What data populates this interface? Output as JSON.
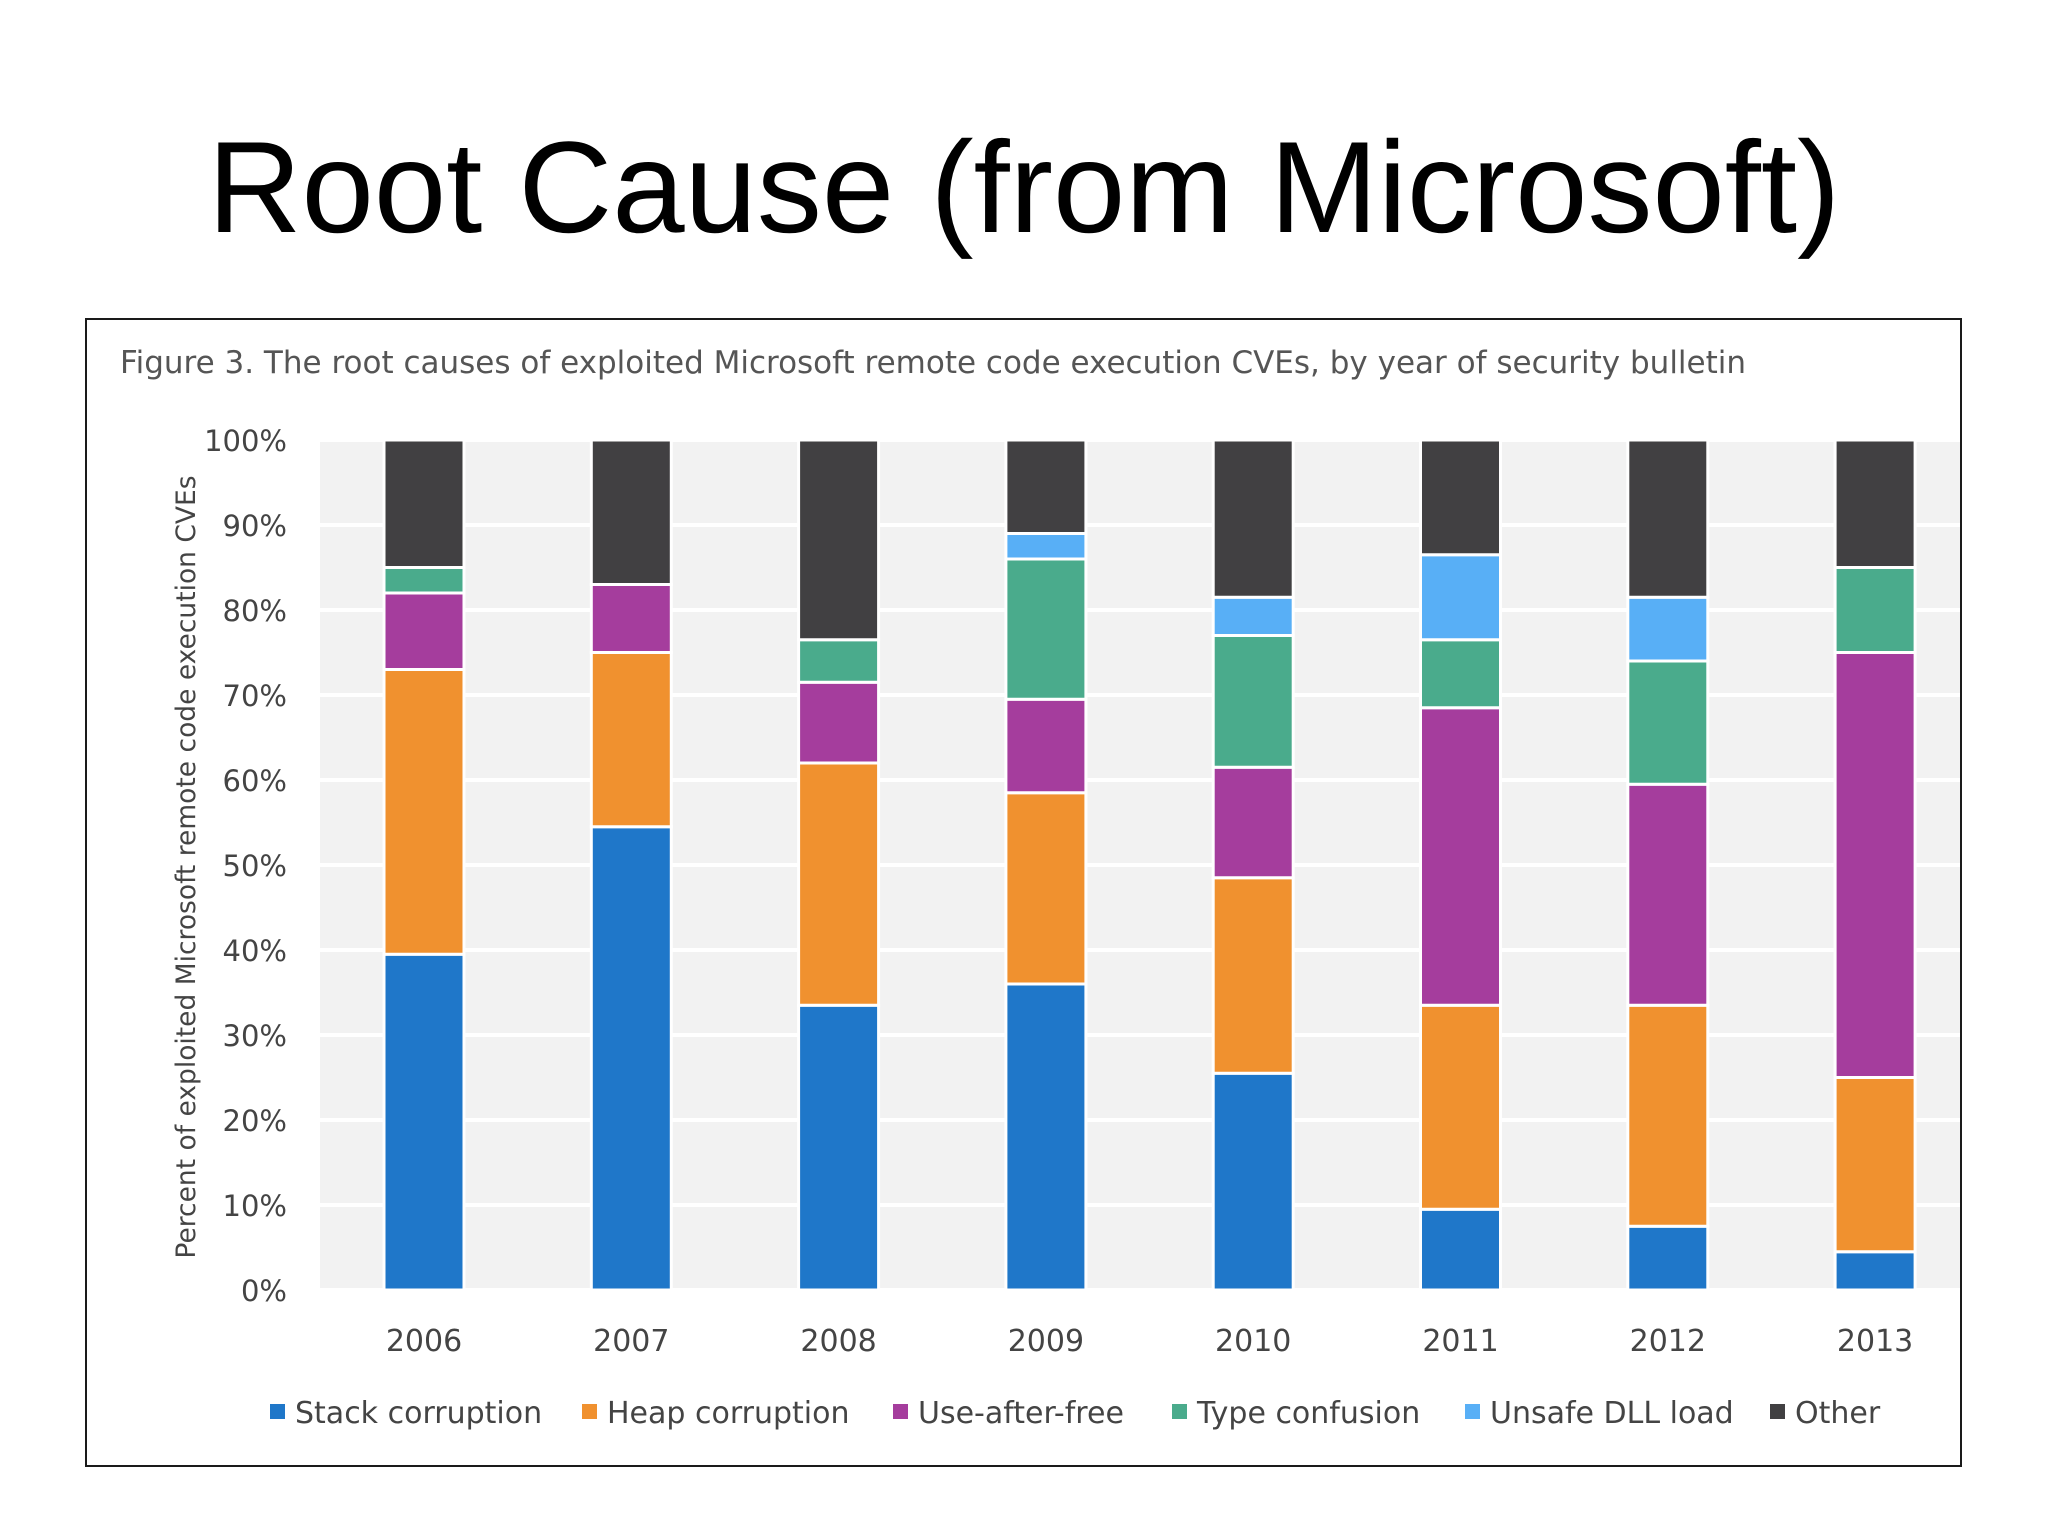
{
  "slide": {
    "title": "Root Cause (from Microsoft)"
  },
  "figure": {
    "caption": "Figure 3. The root causes of exploited Microsoft remote code execution CVEs, by year of security bulletin"
  },
  "chart_data": {
    "type": "bar",
    "stacked": true,
    "title": "Figure 3. The root causes of exploited Microsoft remote code execution CVEs, by year of security bulletin",
    "xlabel": "",
    "ylabel": "Percent of exploited Microsoft remote code execution CVEs",
    "ylim": [
      0,
      100
    ],
    "yticks": [
      0,
      10,
      20,
      30,
      40,
      50,
      60,
      70,
      80,
      90,
      100
    ],
    "ytick_labels": [
      "0%",
      "10%",
      "20%",
      "30%",
      "40%",
      "50%",
      "60%",
      "70%",
      "80%",
      "90%",
      "100%"
    ],
    "grid": true,
    "legend_position": "bottom",
    "categories": [
      "2006",
      "2007",
      "2008",
      "2009",
      "2010",
      "2011",
      "2012",
      "2013"
    ],
    "series": [
      {
        "name": "Stack corruption",
        "color": "#1f77c9",
        "values": [
          39.5,
          54.5,
          33.5,
          36,
          25.5,
          9.5,
          7.5,
          4.5
        ]
      },
      {
        "name": "Heap corruption",
        "color": "#f0912f",
        "values": [
          33.5,
          20.5,
          28.5,
          22.5,
          23,
          24,
          26,
          20.5
        ]
      },
      {
        "name": "Use-after-free",
        "color": "#a53d9d",
        "values": [
          9,
          8,
          9.5,
          11,
          13,
          35,
          26,
          50
        ]
      },
      {
        "name": "Type confusion",
        "color": "#4aab8c",
        "values": [
          3,
          0,
          5,
          16.5,
          15.5,
          8,
          14.5,
          10
        ]
      },
      {
        "name": "Unsafe DLL load",
        "color": "#58aff6",
        "values": [
          0,
          0,
          0,
          3,
          4.5,
          10,
          7.5,
          0
        ]
      },
      {
        "name": "Other",
        "color": "#414042",
        "values": [
          15,
          17,
          23.5,
          11,
          18.5,
          13.5,
          18.5,
          15
        ]
      }
    ]
  }
}
